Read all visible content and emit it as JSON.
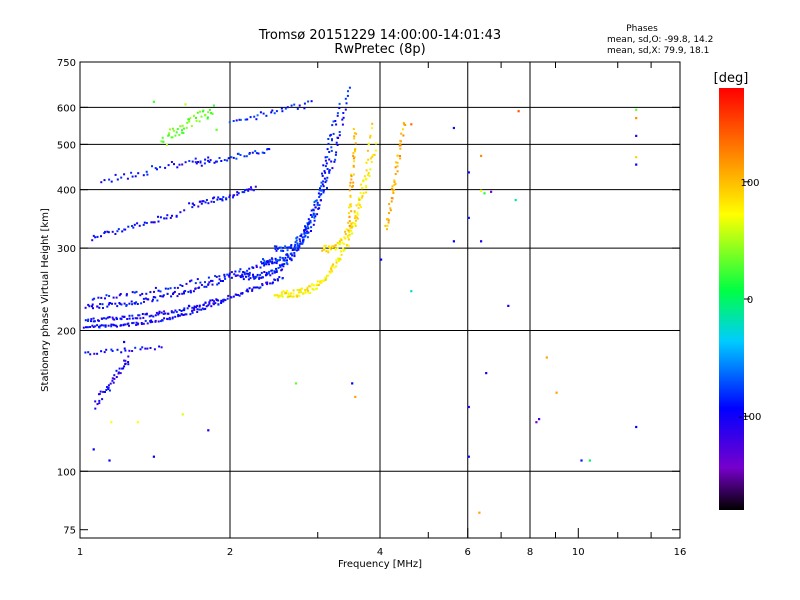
{
  "chart_data": {
    "type": "scatter",
    "title": "Tromsø 20151229 14:00:00-14:01:43",
    "subtitle": "RwPretec (8p)",
    "xlabel": "Frequency [MHz]",
    "ylabel": "Stationary phase Virtual Height [km]",
    "x_scale": "log",
    "y_scale": "log",
    "xlim": [
      1,
      16
    ],
    "ylim": [
      72,
      750
    ],
    "x_ticks": [
      1,
      2,
      4,
      6,
      8,
      10,
      16
    ],
    "y_ticks": [
      75,
      100,
      200,
      300,
      400,
      500,
      600,
      750
    ],
    "grid_x": [
      2,
      4,
      6,
      8
    ],
    "grid_y": [
      100,
      200,
      300,
      400,
      500,
      600
    ],
    "minor_x": [
      3,
      5,
      7,
      9,
      12,
      14
    ],
    "colorbar": {
      "label": "[deg]",
      "min": -180,
      "max": 180,
      "ticks": [
        100,
        0,
        -100
      ],
      "colors": [
        "#000000",
        "#8800ff",
        "#0000ff",
        "#00ffff",
        "#00ff00",
        "#ffff00",
        "#ff8800",
        "#ff0000"
      ]
    },
    "stats": {
      "heading": "Phases",
      "line_o": "mean, sd,O: -99.8, 14.2",
      "line_x": "mean, sd,X: 79.9, 18.1"
    },
    "traces": [
      {
        "f0": 1.02,
        "f1": 1.93,
        "h0": 205,
        "h1": 232,
        "n": 90,
        "phase": -105,
        "bend": 2.2,
        "spread": 3
      },
      {
        "f0": 1.02,
        "f1": 2.55,
        "h0": 212,
        "h1": 262,
        "n": 130,
        "phase": -104,
        "bend": 2.0,
        "spread": 4
      },
      {
        "f0": 1.02,
        "f1": 2.45,
        "h0": 226,
        "h1": 285,
        "n": 110,
        "phase": -102,
        "bend": 1.8,
        "spread": 5
      },
      {
        "f0": 1.05,
        "f1": 2.1,
        "h0": 236,
        "h1": 270,
        "n": 50,
        "phase": -100,
        "bend": 1.5,
        "spread": 5
      },
      {
        "f0": 2.1,
        "f1": 3.45,
        "h0": 262,
        "h1": 660,
        "n": 130,
        "phase": -96,
        "bend": 3.0,
        "spread": 6
      },
      {
        "f0": 2.3,
        "f1": 3.3,
        "h0": 282,
        "h1": 620,
        "n": 90,
        "phase": -92,
        "bend": 3.0,
        "spread": 6
      },
      {
        "f0": 2.45,
        "f1": 3.2,
        "h0": 300,
        "h1": 560,
        "n": 70,
        "phase": -88,
        "bend": 2.8,
        "spread": 6
      },
      {
        "f0": 1.65,
        "f1": 2.25,
        "h0": 372,
        "h1": 405,
        "n": 45,
        "phase": -104,
        "bend": 1.2,
        "spread": 5
      },
      {
        "f0": 1.05,
        "f1": 1.6,
        "h0": 318,
        "h1": 360,
        "n": 40,
        "phase": -102,
        "bend": 1.2,
        "spread": 6
      },
      {
        "f0": 1.7,
        "f1": 2.4,
        "h0": 455,
        "h1": 490,
        "n": 35,
        "phase": -96,
        "bend": 1.0,
        "spread": 5
      },
      {
        "f0": 1.1,
        "f1": 1.8,
        "h0": 420,
        "h1": 470,
        "n": 35,
        "phase": -100,
        "bend": 1.0,
        "spread": 8
      },
      {
        "f0": 2.0,
        "f1": 2.9,
        "h0": 560,
        "h1": 615,
        "n": 30,
        "phase": -90,
        "bend": 1.0,
        "spread": 6
      },
      {
        "f0": 2.45,
        "f1": 3.9,
        "h0": 240,
        "h1": 500,
        "n": 140,
        "phase": 85,
        "bend": 3.2,
        "spread": 7
      },
      {
        "f0": 3.05,
        "f1": 3.85,
        "h0": 300,
        "h1": 560,
        "n": 70,
        "phase": 92,
        "bend": 3.0,
        "spread": 8
      },
      {
        "f0": 3.45,
        "f1": 3.55,
        "h0": 330,
        "h1": 540,
        "n": 40,
        "phase": 110,
        "bend": 1.0,
        "spread": 9
      },
      {
        "f0": 4.1,
        "f1": 4.45,
        "h0": 330,
        "h1": 560,
        "n": 45,
        "phase": 115,
        "bend": 1.0,
        "spread": 9
      },
      {
        "f0": 1.45,
        "f1": 1.85,
        "h0": 510,
        "h1": 600,
        "n": 50,
        "phase": 30,
        "bend": 1.0,
        "spread": 12
      },
      {
        "f0": 1.07,
        "f1": 1.25,
        "h0": 140,
        "h1": 175,
        "n": 40,
        "phase": -110,
        "bend": 1.0,
        "spread": 10
      },
      {
        "f0": 1.02,
        "f1": 1.45,
        "h0": 180,
        "h1": 185,
        "n": 25,
        "phase": -105,
        "bend": 1.0,
        "spread": 4
      }
    ],
    "points": [
      {
        "x": 5.6,
        "y": 545,
        "phase": -95
      },
      {
        "x": 6.0,
        "y": 438,
        "phase": -100
      },
      {
        "x": 5.6,
        "y": 312,
        "phase": -100
      },
      {
        "x": 6.0,
        "y": 350,
        "phase": -95
      },
      {
        "x": 6.35,
        "y": 400,
        "phase": 70
      },
      {
        "x": 6.35,
        "y": 475,
        "phase": 130
      },
      {
        "x": 6.45,
        "y": 395,
        "phase": 10
      },
      {
        "x": 6.65,
        "y": 398,
        "phase": -150
      },
      {
        "x": 6.35,
        "y": 312,
        "phase": -110
      },
      {
        "x": 7.55,
        "y": 592,
        "phase": 150
      },
      {
        "x": 7.45,
        "y": 382,
        "phase": -20
      },
      {
        "x": 7.2,
        "y": 227,
        "phase": -110
      },
      {
        "x": 8.6,
        "y": 176,
        "phase": 120
      },
      {
        "x": 9.0,
        "y": 148,
        "phase": 120
      },
      {
        "x": 8.3,
        "y": 130,
        "phase": -130
      },
      {
        "x": 8.2,
        "y": 128,
        "phase": -150
      },
      {
        "x": 6.5,
        "y": 163,
        "phase": -110
      },
      {
        "x": 6.0,
        "y": 138,
        "phase": -110
      },
      {
        "x": 6.0,
        "y": 108,
        "phase": -100
      },
      {
        "x": 6.3,
        "y": 82,
        "phase": 120
      },
      {
        "x": 10.1,
        "y": 106,
        "phase": -95
      },
      {
        "x": 10.5,
        "y": 106,
        "phase": -10
      },
      {
        "x": 13.0,
        "y": 596,
        "phase": 30
      },
      {
        "x": 13.0,
        "y": 572,
        "phase": 130
      },
      {
        "x": 13.0,
        "y": 524,
        "phase": -120
      },
      {
        "x": 13.0,
        "y": 472,
        "phase": 100
      },
      {
        "x": 13.0,
        "y": 455,
        "phase": -100
      },
      {
        "x": 13.0,
        "y": 125,
        "phase": -100
      },
      {
        "x": 4.6,
        "y": 244,
        "phase": -30
      },
      {
        "x": 4.6,
        "y": 555,
        "phase": 140
      },
      {
        "x": 4.0,
        "y": 285,
        "phase": -100
      },
      {
        "x": 3.5,
        "y": 155,
        "phase": -100
      },
      {
        "x": 3.55,
        "y": 145,
        "phase": 120
      },
      {
        "x": 2.7,
        "y": 155,
        "phase": 30
      },
      {
        "x": 1.8,
        "y": 123,
        "phase": -110
      },
      {
        "x": 1.4,
        "y": 108,
        "phase": -100
      },
      {
        "x": 1.06,
        "y": 112,
        "phase": -100
      },
      {
        "x": 1.14,
        "y": 106,
        "phase": -105
      },
      {
        "x": 1.6,
        "y": 133,
        "phase": 70
      },
      {
        "x": 1.3,
        "y": 128,
        "phase": 80
      },
      {
        "x": 1.15,
        "y": 128,
        "phase": 80
      },
      {
        "x": 1.22,
        "y": 190,
        "phase": -100
      },
      {
        "x": 1.4,
        "y": 620,
        "phase": 20
      },
      {
        "x": 1.62,
        "y": 612,
        "phase": 60
      },
      {
        "x": 1.87,
        "y": 540,
        "phase": 30
      }
    ]
  }
}
